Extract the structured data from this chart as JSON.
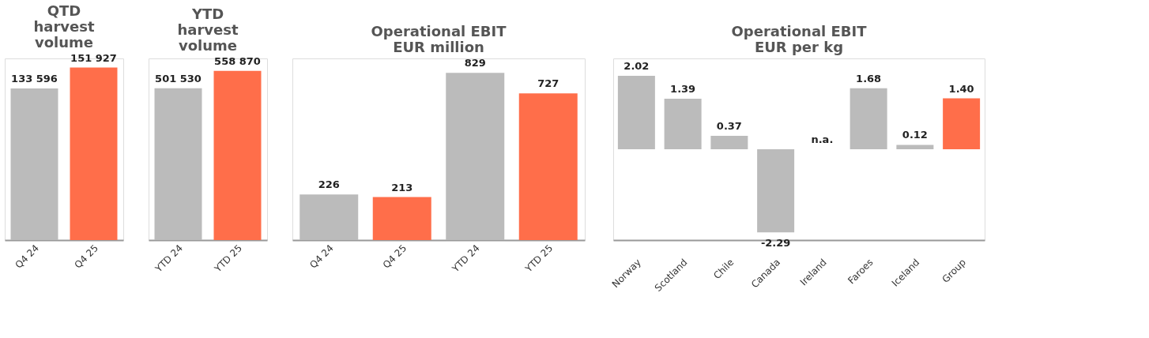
{
  "chart_data": [
    {
      "type": "bar",
      "title": "QTD\nharvest\nvolume",
      "categories": [
        "Q4 24",
        "Q4 25"
      ],
      "values": [
        133596,
        151927
      ],
      "colors": [
        "#bbbbbb",
        "#ff6e4a"
      ],
      "value_labels": [
        "133 596",
        "151 927"
      ]
    },
    {
      "type": "bar",
      "title": "YTD\nharvest\nvolume",
      "categories": [
        "YTD 24",
        "YTD 25"
      ],
      "values": [
        501530,
        558870
      ],
      "colors": [
        "#bbbbbb",
        "#ff6e4a"
      ],
      "value_labels": [
        "501 530",
        "558 870"
      ]
    },
    {
      "type": "bar",
      "title": "Operational EBIT\nEUR million",
      "categories": [
        "Q4 24",
        "Q4 25",
        "YTD 24",
        "YTD 25"
      ],
      "values": [
        226,
        213,
        829,
        727
      ],
      "colors": [
        "#bbbbbb",
        "#ff6e4a",
        "#bbbbbb",
        "#ff6e4a"
      ],
      "data_labels": true
    },
    {
      "type": "bar",
      "title": "Operational EBIT\nEUR per kg",
      "categories": [
        "Norway",
        "Scotland",
        "Chile",
        "Canada",
        "Ireland",
        "Faroes",
        "Iceland",
        "Group"
      ],
      "values": [
        2.02,
        1.39,
        0.37,
        -2.29,
        null,
        1.68,
        0.12,
        1.4
      ],
      "colors": [
        "#bbbbbb",
        "#bbbbbb",
        "#bbbbbb",
        "#bbbbbb",
        "#bbbbbb",
        "#bbbbbb",
        "#bbbbbb",
        "#ff6e4a"
      ],
      "value_labels": [
        "2.02",
        "1.39",
        "0.37",
        "-2.29",
        "n.a.",
        "1.68",
        "0.12",
        "1.40"
      ]
    }
  ]
}
